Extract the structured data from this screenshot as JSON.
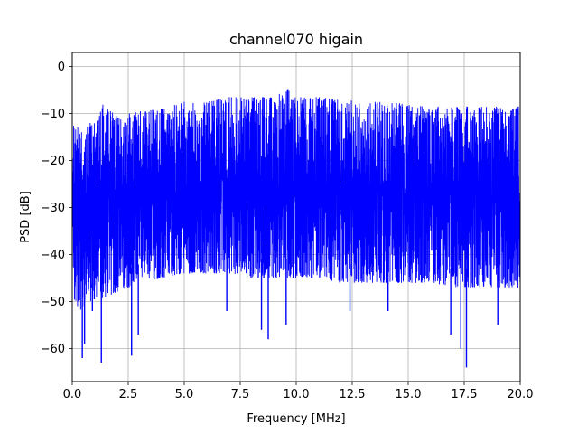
{
  "chart_data": {
    "type": "line",
    "title": "channel070 higain",
    "xlabel": "Frequency [MHz]",
    "ylabel": "PSD [dB]",
    "xlim": [
      0,
      20
    ],
    "ylim": [
      -67,
      3
    ],
    "xticks": [
      0.0,
      2.5,
      5.0,
      7.5,
      10.0,
      12.5,
      15.0,
      17.5,
      20.0
    ],
    "xtick_labels": [
      "0.0",
      "2.5",
      "5.0",
      "7.5",
      "10.0",
      "12.5",
      "15.0",
      "17.5",
      "20.0"
    ],
    "yticks": [
      0,
      -10,
      -20,
      -30,
      -40,
      -50,
      -60
    ],
    "ytick_labels": [
      "0",
      "−10",
      "−20",
      "−30",
      "−40",
      "−50",
      "−60"
    ],
    "grid": true,
    "series": [
      {
        "color": "#0000ff",
        "envelope": {
          "x": [
            0.0,
            0.1,
            0.3,
            0.6,
            1.0,
            1.2,
            1.3,
            1.4,
            1.6,
            2.0,
            2.5,
            3.0,
            4.0,
            5.0,
            6.0,
            7.0,
            8.0,
            9.0,
            9.7,
            10.0,
            11.0,
            12.0,
            13.0,
            14.0,
            15.0,
            16.0,
            17.0,
            18.0,
            19.0,
            20.0
          ],
          "max": [
            -10,
            -12,
            -12.5,
            -12,
            -12,
            -11,
            -7.5,
            -8,
            -9,
            -10.5,
            -10,
            -9.5,
            -9,
            -7.5,
            -7.5,
            -6.5,
            -6.5,
            -6.5,
            -4.5,
            -6.5,
            -6.5,
            -7,
            -7.5,
            -7.5,
            -8,
            -8.5,
            -8.5,
            -8.5,
            -8.5,
            -8.5
          ],
          "min": [
            -40,
            -50,
            -52,
            -51,
            -50,
            -48,
            -50,
            -49,
            -49,
            -48,
            -47,
            -46,
            -45,
            -44,
            -44,
            -44,
            -45,
            -45,
            -45,
            -45,
            -45,
            -46,
            -46,
            -46,
            -46,
            -46,
            -47,
            -47,
            -47,
            -47
          ]
        },
        "dips": [
          {
            "x": 0.45,
            "y": -62
          },
          {
            "x": 0.55,
            "y": -59
          },
          {
            "x": 0.9,
            "y": -52
          },
          {
            "x": 1.3,
            "y": -63
          },
          {
            "x": 2.65,
            "y": -61.5
          },
          {
            "x": 2.95,
            "y": -57
          },
          {
            "x": 6.9,
            "y": -52
          },
          {
            "x": 8.45,
            "y": -56
          },
          {
            "x": 8.75,
            "y": -58
          },
          {
            "x": 9.55,
            "y": -55
          },
          {
            "x": 12.4,
            "y": -52
          },
          {
            "x": 14.1,
            "y": -52
          },
          {
            "x": 16.9,
            "y": -57
          },
          {
            "x": 17.35,
            "y": -60
          },
          {
            "x": 17.6,
            "y": -64
          },
          {
            "x": 19.0,
            "y": -55
          }
        ]
      }
    ]
  }
}
